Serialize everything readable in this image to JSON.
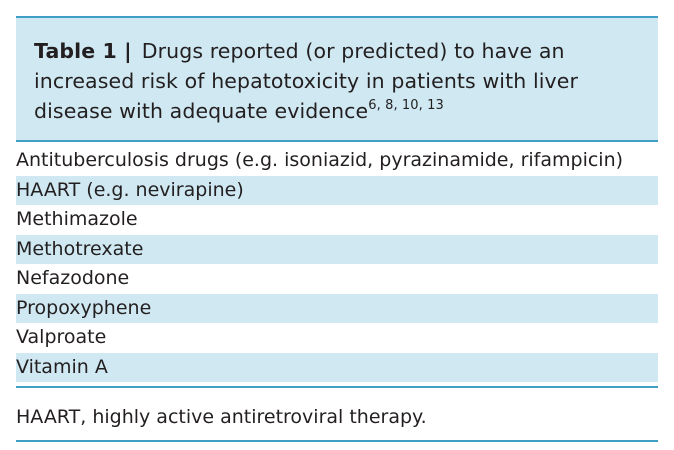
{
  "table": {
    "label": "Table 1 |",
    "caption": "Drugs reported (or predicted) to have an increased risk of hepatotoxicity in patients with liver disease with adequate evidence",
    "references": "6, 8, 10, 13",
    "rows": [
      "Antituberculosis drugs (e.g. isoniazid, pyrazinamide, rifampicin)",
      "HAART (e.g. nevirapine)",
      "Methimazole",
      "Methotrexate",
      "Nefazodone",
      "Propoxyphene",
      "Valproate",
      "Vitamin A"
    ],
    "footnote": "HAART, highly active antiretroviral therapy."
  },
  "colors": {
    "rule": "#3f9fc4",
    "shade": "#cfe8f2",
    "text": "#231f20"
  }
}
